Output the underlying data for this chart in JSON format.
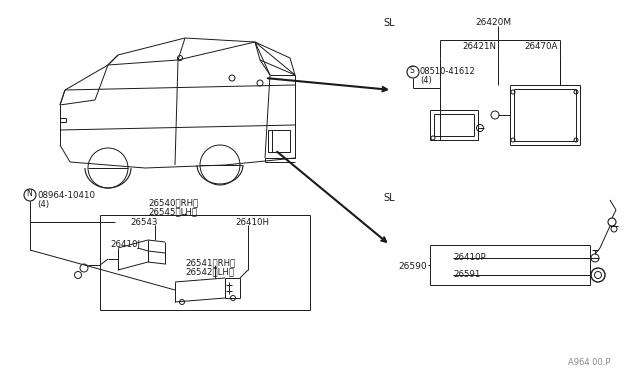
{
  "bg_color": "#ffffff",
  "line_color": "#1a1a1a",
  "text_color": "#1a1a1a",
  "gray_color": "#888888",
  "part_number_bottom_right": "A964 00.P",
  "labels": {
    "N_nut": "08964-10410",
    "N_nut2": "(4)",
    "sl_top": "SL",
    "sl_bottom": "SL",
    "26420M": "26420M",
    "26421N": "26421N",
    "26470A": "26470A",
    "screw_num": "08510-41612",
    "screw_num2": "(4)",
    "26540_RH": "26540（RH）",
    "26545_LH": "26545（LH）",
    "26543": "26543",
    "26410H": "26410H",
    "26410J": "26410J",
    "26541_RH": "26541（RH）",
    "26542_LH": "26542（LH）",
    "26590": "26590",
    "26410P": "26410P",
    "26591": "26591"
  }
}
